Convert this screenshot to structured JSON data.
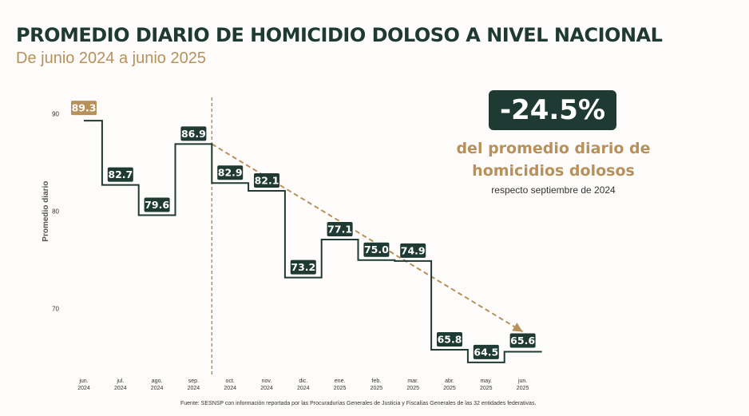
{
  "title": "PROMEDIO DIARIO DE HOMICIDIO DOLOSO A NIVEL NACIONAL",
  "subtitle": "De junio 2024 a junio 2025",
  "highlight": {
    "value": "-24.5%",
    "line1": "del promedio diario de",
    "line2": "homicidios dolosos",
    "note": "respecto septiembre de 2024"
  },
  "source": "Fuente: SESNSP con información reportada por las Procuradurías Generales de Justicia y Fiscalías Generales de las 32 entidades federativas.",
  "colors": {
    "dark": "#1e3a32",
    "gold": "#b8905a"
  },
  "chart_data": {
    "type": "line",
    "step": true,
    "ylabel": "Promedio diario",
    "yticks": [
      70,
      80,
      90
    ],
    "ylim": [
      64,
      90.7
    ],
    "x": [
      {
        "month": "jun.",
        "year": "2024"
      },
      {
        "month": "jul.",
        "year": "2024"
      },
      {
        "month": "ago.",
        "year": "2024"
      },
      {
        "month": "sep.",
        "year": "2024"
      },
      {
        "month": "oct.",
        "year": "2024"
      },
      {
        "month": "nov.",
        "year": "2024"
      },
      {
        "month": "dic.",
        "year": "2024"
      },
      {
        "month": "ene.",
        "year": "2025"
      },
      {
        "month": "feb.",
        "year": "2025"
      },
      {
        "month": "mar.",
        "year": "2025"
      },
      {
        "month": "abr.",
        "year": "2025"
      },
      {
        "month": "may.",
        "year": "2025"
      },
      {
        "month": "jun.",
        "year": "2025"
      }
    ],
    "values": [
      89.3,
      82.7,
      79.6,
      86.9,
      82.9,
      82.1,
      73.2,
      77.1,
      75.0,
      74.9,
      65.8,
      64.5,
      65.6
    ],
    "labels": [
      "89.3",
      "82.7",
      "79.6",
      "86.9",
      "82.9",
      "82.1",
      "73.2",
      "77.1",
      "75.0",
      "74.9",
      "65.8",
      "64.5",
      "65.6"
    ],
    "reference_line_at": "sep. 2024",
    "trend_arrow": {
      "from": "sep. 2024",
      "to": "jun. 2025"
    }
  }
}
